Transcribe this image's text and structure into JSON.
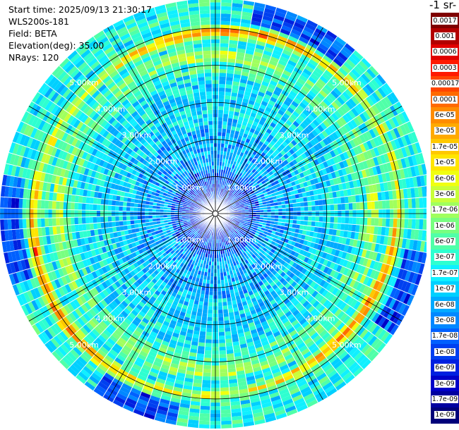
{
  "info": {
    "start_time": "Start time: 2025/09/13 21:30:17",
    "instrument": "WLS200s-181",
    "field": "Field: BETA",
    "elevation": "Elevation(deg): 35.00",
    "nrays": "NRays: 120"
  },
  "chart_data": {
    "type": "heatmap",
    "projection": "polar-ppi",
    "grid": true,
    "rays": 120,
    "range_km": [
      0,
      5.8
    ],
    "range_rings": [
      {
        "range_km": 1,
        "label": "1.00km"
      },
      {
        "range_km": 2,
        "label": "2.00km"
      },
      {
        "range_km": 3,
        "label": "3.00km"
      },
      {
        "range_km": 4,
        "label": "4.00km"
      },
      {
        "range_km": 5,
        "label": "5.00km"
      }
    ],
    "azimuth_spokes_deg": [
      0,
      30,
      60,
      90,
      120,
      150,
      180,
      210,
      240,
      270,
      300,
      330
    ],
    "colorbar": {
      "title": "-1 sr-",
      "placement": "right",
      "labels": [
        "0.0017",
        "0.001",
        "0.0006",
        "0.0003",
        "0.00017",
        "0.0001",
        "6e-05",
        "3e-05",
        "1.7e-05",
        "1e-05",
        "6e-06",
        "3e-06",
        "1.7e-06",
        "1e-06",
        "6e-07",
        "3e-07",
        "1.7e-07",
        "1e-07",
        "6e-08",
        "3e-08",
        "1.7e-08",
        "1e-08",
        "6e-09",
        "3e-09",
        "1.7e-09",
        "1e-09"
      ],
      "colors": [
        "#7f0000",
        "#b20000",
        "#e00000",
        "#ff1a00",
        "#ff4500",
        "#ff6a00",
        "#ff8c00",
        "#ffaa00",
        "#ffc800",
        "#ffe500",
        "#f0ff10",
        "#c8ff3a",
        "#a0ff5e",
        "#78ff80",
        "#50ffa8",
        "#2effd0",
        "#10f0ff",
        "#00d0ff",
        "#00aaff",
        "#0088ff",
        "#0060ff",
        "#0040f0",
        "#0020e0",
        "#0000c8",
        "#0000a0",
        "#00007a"
      ]
    }
  }
}
